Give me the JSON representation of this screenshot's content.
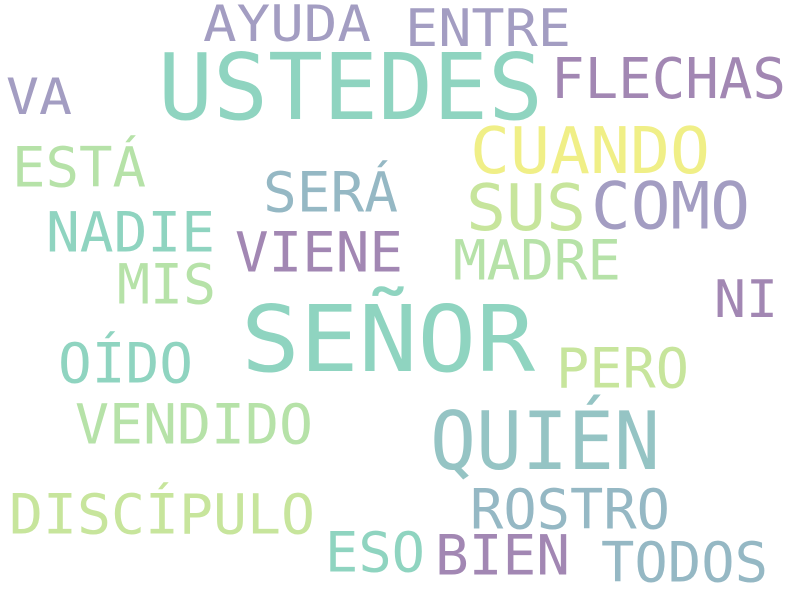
{
  "palette": {
    "teal": "#8fd4c0",
    "mint": "#b6e2a8",
    "yellow": "#f0ef87",
    "purple": "#a287b3",
    "lavender": "#a39dc2",
    "steel": "#95b8c4"
  },
  "words": [
    {
      "text": "AYUDA",
      "color": "#a39dc2"
    },
    {
      "text": "ENTRE",
      "color": "#a39dc2"
    },
    {
      "text": "USTEDES",
      "color": "#8fd4c0"
    },
    {
      "text": "FLECHAS",
      "color": "#a287b3"
    },
    {
      "text": "VA",
      "color": "#a39dc2"
    },
    {
      "text": "CUANDO",
      "color": "#f0ef87"
    },
    {
      "text": "ESTÁ",
      "color": "#b6e2a8"
    },
    {
      "text": "SERÁ",
      "color": "#95b8c4"
    },
    {
      "text": "SUS",
      "color": "#c7e59c"
    },
    {
      "text": "COMO",
      "color": "#a39dc2"
    },
    {
      "text": "NADIE",
      "color": "#8fd4c0"
    },
    {
      "text": "VIENE",
      "color": "#a287b3"
    },
    {
      "text": "MADRE",
      "color": "#b6e2a8"
    },
    {
      "text": "MIS",
      "color": "#b6e2a8"
    },
    {
      "text": "NI",
      "color": "#a287b3"
    },
    {
      "text": "SEÑOR",
      "color": "#8fd4c0"
    },
    {
      "text": "OÍDO",
      "color": "#8fd4c0"
    },
    {
      "text": "PERO",
      "color": "#c7e59c"
    },
    {
      "text": "VENDIDO",
      "color": "#b6e2a8"
    },
    {
      "text": "QUIÉN",
      "color": "#95c4c4"
    },
    {
      "text": "ROSTRO",
      "color": "#95b8c4"
    },
    {
      "text": "DISCÍPULO",
      "color": "#c7e59c"
    },
    {
      "text": "ESO",
      "color": "#8fd4c0"
    },
    {
      "text": "BIEN",
      "color": "#a287b3"
    },
    {
      "text": "TODOS",
      "color": "#95b8c4"
    }
  ]
}
